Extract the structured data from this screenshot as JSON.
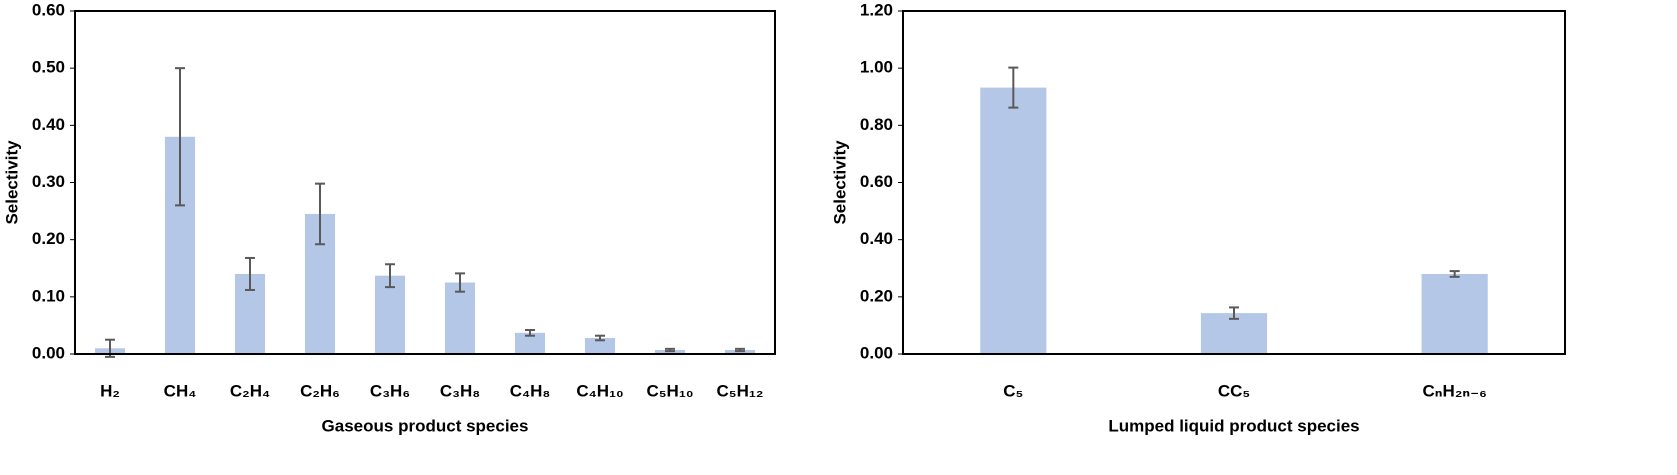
{
  "chart_data": [
    {
      "type": "bar",
      "x_label": "Gaseous product species",
      "y_label": "Selectivity",
      "categories": [
        "H₂",
        "CH₄",
        "C₂H₄",
        "C₂H₆",
        "C₃H₆",
        "C₃H₈",
        "C₄H₈",
        "C₄H₁₀",
        "C₅H₁₀",
        "C₅H₁₂"
      ],
      "values": [
        0.01,
        0.38,
        0.14,
        0.245,
        0.137,
        0.125,
        0.037,
        0.028,
        0.007,
        0.007
      ],
      "errors": [
        0.015,
        0.12,
        0.028,
        0.053,
        0.02,
        0.016,
        0.005,
        0.004,
        0.002,
        0.002
      ],
      "color": "#b4c7e7",
      "error_color": "#595959",
      "ylim": [
        0,
        0.6
      ],
      "yticks": [
        {
          "value": 0,
          "label": "0.00"
        },
        {
          "value": 0.1,
          "label": "0.10"
        },
        {
          "value": 0.2,
          "label": "0.20"
        },
        {
          "value": 0.3,
          "label": "0.30"
        },
        {
          "value": 0.4,
          "label": "0.40"
        },
        {
          "value": 0.5,
          "label": "0.50"
        },
        {
          "value": 0.6,
          "label": "0.60"
        }
      ]
    },
    {
      "type": "bar",
      "x_label": "Lumped liquid product species",
      "y_label": "Selectivity",
      "categories": [
        "C₅",
        "CC₅",
        "CₙH₂ₙ₋₆"
      ],
      "values": [
        0.932,
        0.143,
        0.28
      ],
      "errors": [
        0.07,
        0.02,
        0.01
      ],
      "color": "#b4c7e7",
      "error_color": "#595959",
      "ylim": [
        0,
        1.2
      ],
      "yticks": [
        {
          "value": 0,
          "label": "0.00"
        },
        {
          "value": 0.2,
          "label": "0.20"
        },
        {
          "value": 0.4,
          "label": "0.40"
        },
        {
          "value": 0.6,
          "label": "0.60"
        },
        {
          "value": 0.8,
          "label": "0.80"
        },
        {
          "value": 1.0,
          "label": "1.00"
        },
        {
          "value": 1.2,
          "label": "1.20"
        }
      ]
    }
  ]
}
